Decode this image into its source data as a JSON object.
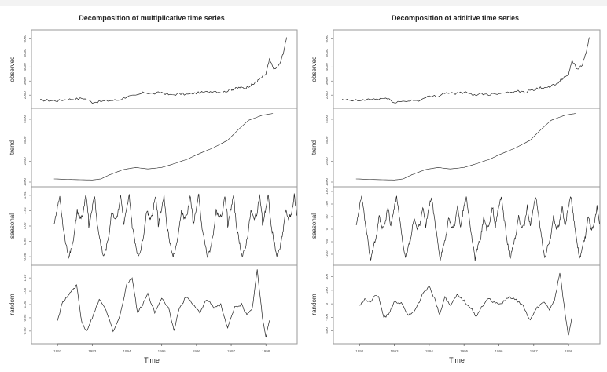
{
  "chart_data": [
    {
      "type": "line",
      "title": "Decomposition of multiplicative time series",
      "xlabel": "Time",
      "x_ticks": [
        "1992",
        "1993",
        "1994",
        "1995",
        "1996",
        "1997",
        "1998"
      ],
      "xlim": [
        1991.25,
        1998.9
      ],
      "panels": [
        {
          "name": "observed",
          "ylabel": "observed",
          "y_ticks": [
            "2000",
            "3000",
            "4000",
            "5000",
            "6000"
          ],
          "ylim": [
            1400,
            6300
          ],
          "x": [
            1991.5,
            1991.75,
            1992,
            1992.25,
            1992.5,
            1992.75,
            1993,
            1993.25,
            1993.5,
            1993.75,
            1994,
            1994.25,
            1994.5,
            1994.75,
            1995,
            1995.25,
            1995.5,
            1995.75,
            1996,
            1996.25,
            1996.5,
            1996.75,
            1997,
            1997.1,
            1997.25,
            1997.4,
            1997.55,
            1997.65,
            1997.75,
            1997.85,
            1998,
            1998.1,
            1998.25,
            1998.4,
            1998.5,
            1998.6
          ],
          "values": [
            1650,
            1630,
            1600,
            1700,
            1720,
            1780,
            1500,
            1550,
            1620,
            1650,
            1900,
            1950,
            2200,
            2100,
            2200,
            2000,
            2100,
            2050,
            2150,
            2200,
            2300,
            2200,
            2400,
            2450,
            2550,
            2500,
            2700,
            2800,
            3000,
            3200,
            3500,
            4500,
            3800,
            4200,
            5000,
            6100
          ]
        },
        {
          "name": "trend",
          "ylabel": "trend",
          "y_ticks": [
            "1500",
            "2500",
            "3500",
            "4500"
          ],
          "ylim": [
            1500,
            4800
          ],
          "x": [
            1991.9,
            1992.5,
            1993,
            1993.25,
            1993.5,
            1993.9,
            1994.25,
            1994.6,
            1995,
            1995.4,
            1995.75,
            1996,
            1996.5,
            1996.9,
            1997.2,
            1997.5,
            1997.9,
            1998.2
          ],
          "values": [
            1650,
            1620,
            1600,
            1650,
            1850,
            2100,
            2200,
            2130,
            2200,
            2400,
            2600,
            2800,
            3150,
            3500,
            4000,
            4450,
            4700,
            4780
          ]
        },
        {
          "name": "seasonal",
          "ylabel": "seasonal",
          "y_ticks": [
            "0.96",
            "0.98",
            "1.00",
            "1.02",
            "1.04"
          ],
          "ylim": [
            0.955,
            1.045
          ],
          "period_years": 1,
          "cycle_profile": [
            1.0,
            1.02,
            1.04,
            1.0,
            0.98,
            0.96,
            0.97,
            0.99,
            1.02,
            1.01,
            1.015,
            1.04,
            1.01
          ],
          "cycles": 7
        },
        {
          "name": "random",
          "ylabel": "random",
          "y_ticks": [
            "0.90",
            "0.95",
            "1.00",
            "1.05",
            "1.10"
          ],
          "ylim": [
            0.87,
            1.13
          ],
          "x": [
            1992,
            1992.15,
            1992.3,
            1992.45,
            1992.55,
            1992.7,
            1992.85,
            1993,
            1993.2,
            1993.4,
            1993.6,
            1993.8,
            1994,
            1994.15,
            1994.3,
            1994.45,
            1994.6,
            1994.8,
            1995,
            1995.2,
            1995.35,
            1995.5,
            1995.7,
            1995.9,
            1996.1,
            1996.3,
            1996.5,
            1996.7,
            1996.9,
            1997.1,
            1997.3,
            1997.45,
            1997.6,
            1997.75,
            1997.9,
            1998,
            1998.1
          ],
          "values": [
            0.94,
            1.01,
            1.03,
            1.06,
            1.07,
            0.93,
            0.9,
            0.95,
            1.02,
            0.98,
            0.9,
            0.96,
            1.08,
            1.1,
            0.97,
            1.0,
            1.04,
            0.97,
            1.02,
            0.99,
            0.9,
            0.98,
            1.03,
            1.0,
            0.97,
            1.02,
            0.99,
            1.0,
            0.91,
            0.99,
            1.0,
            0.96,
            0.98,
            1.13,
            0.95,
            0.88,
            0.94
          ]
        }
      ]
    },
    {
      "type": "line",
      "title": "Decomposition of additive time series",
      "xlabel": "Time",
      "x_ticks": [
        "1992",
        "1993",
        "1994",
        "1995",
        "1996",
        "1997",
        "1998"
      ],
      "xlim": [
        1991.25,
        1998.9
      ],
      "panels": [
        {
          "name": "observed",
          "ylabel": "observed",
          "y_ticks": [
            "2000",
            "3000",
            "4000",
            "5000",
            "6000"
          ],
          "ylim": [
            1400,
            6300
          ],
          "x": [
            1991.5,
            1991.75,
            1992,
            1992.25,
            1992.5,
            1992.75,
            1993,
            1993.25,
            1993.5,
            1993.75,
            1994,
            1994.25,
            1994.5,
            1994.75,
            1995,
            1995.25,
            1995.5,
            1995.75,
            1996,
            1996.25,
            1996.5,
            1996.75,
            1997,
            1997.1,
            1997.25,
            1997.4,
            1997.55,
            1997.65,
            1997.75,
            1997.85,
            1998,
            1998.1,
            1998.25,
            1998.4,
            1998.5,
            1998.6
          ],
          "values": [
            1650,
            1630,
            1600,
            1700,
            1720,
            1780,
            1500,
            1550,
            1620,
            1650,
            1900,
            1950,
            2200,
            2100,
            2200,
            2000,
            2100,
            2050,
            2150,
            2200,
            2300,
            2200,
            2400,
            2450,
            2550,
            2500,
            2700,
            2800,
            3000,
            3200,
            3500,
            4500,
            3800,
            4200,
            5000,
            6100
          ]
        },
        {
          "name": "trend",
          "ylabel": "trend",
          "y_ticks": [
            "1500",
            "2500",
            "3500",
            "4500"
          ],
          "ylim": [
            1500,
            4800
          ],
          "x": [
            1991.9,
            1992.5,
            1993,
            1993.25,
            1993.5,
            1993.9,
            1994.25,
            1994.6,
            1995,
            1995.4,
            1995.75,
            1996,
            1996.5,
            1996.9,
            1997.2,
            1997.5,
            1997.9,
            1998.2
          ],
          "values": [
            1650,
            1620,
            1600,
            1650,
            1850,
            2100,
            2200,
            2130,
            2200,
            2400,
            2600,
            2800,
            3150,
            3500,
            4000,
            4450,
            4700,
            4780
          ]
        },
        {
          "name": "seasonal",
          "ylabel": "seasonal",
          "y_ticks": [
            "-100",
            "-50",
            "0",
            "50",
            "100",
            "150"
          ],
          "ylim": [
            -125,
            150
          ],
          "period_years": 1,
          "cycle_profile": [
            10,
            80,
            130,
            40,
            -40,
            -120,
            -70,
            -30,
            50,
            0,
            20,
            90,
            10
          ],
          "cycles": 7
        },
        {
          "name": "random",
          "ylabel": "random",
          "y_ticks": [
            "-400",
            "-200",
            "0",
            "200",
            "400"
          ],
          "ylim": [
            -520,
            500
          ],
          "x": [
            1992,
            1992.15,
            1992.3,
            1992.45,
            1992.55,
            1992.7,
            1992.85,
            1993,
            1993.2,
            1993.4,
            1993.6,
            1993.8,
            1994,
            1994.15,
            1994.3,
            1994.45,
            1994.6,
            1994.8,
            1995,
            1995.2,
            1995.35,
            1995.5,
            1995.7,
            1995.9,
            1996.1,
            1996.3,
            1996.5,
            1996.7,
            1996.9,
            1997.1,
            1997.3,
            1997.45,
            1997.6,
            1997.75,
            1997.9,
            1998,
            1998.1
          ],
          "values": [
            -20,
            60,
            30,
            120,
            110,
            -200,
            -150,
            40,
            10,
            -160,
            -100,
            130,
            250,
            80,
            -160,
            100,
            -30,
            130,
            40,
            -60,
            -200,
            -50,
            80,
            0,
            20,
            100,
            60,
            -40,
            -250,
            -50,
            20,
            -80,
            50,
            470,
            -150,
            -480,
            -200
          ]
        }
      ]
    }
  ]
}
